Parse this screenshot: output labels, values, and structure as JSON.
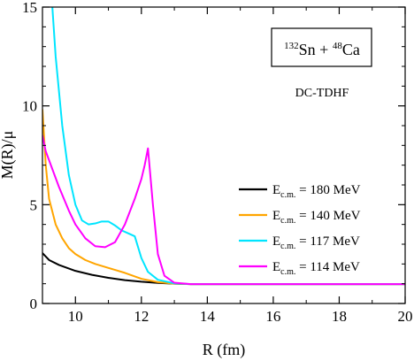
{
  "chart_data": {
    "type": "line",
    "xlabel": "R (fm)",
    "ylabel": "M(R)/μ",
    "xlim": [
      9,
      20
    ],
    "ylim": [
      0,
      15
    ],
    "xticks": [
      10,
      12,
      14,
      16,
      18,
      20
    ],
    "yticks": [
      0,
      5,
      10,
      15
    ],
    "grid": false,
    "legend_position": "right",
    "annotations": {
      "reaction": {
        "sup1": "132",
        "el1": "Sn + ",
        "sup2": "48",
        "el2": "Ca"
      },
      "method": "DC-TDHF"
    },
    "series": [
      {
        "name": "E_c.m. = 180 MeV",
        "legend": {
          "main": "E",
          "sub": "c.m.",
          "rest": " = 180 MeV"
        },
        "color": "#000000",
        "x": [
          9.0,
          9.2,
          9.5,
          10.0,
          10.5,
          11.0,
          11.5,
          12.0,
          12.5,
          13.0,
          13.5,
          14.0,
          16.0,
          18.0,
          20.0
        ],
        "y": [
          2.55,
          2.2,
          1.95,
          1.65,
          1.45,
          1.3,
          1.18,
          1.1,
          1.04,
          1.0,
          0.98,
          0.98,
          0.98,
          0.98,
          0.98
        ]
      },
      {
        "name": "E_c.m. = 140 MeV",
        "legend": {
          "main": "E",
          "sub": "c.m.",
          "rest": " = 140 MeV"
        },
        "color": "#ffa500",
        "x": [
          9.0,
          9.1,
          9.2,
          9.4,
          9.6,
          9.8,
          10.0,
          10.3,
          10.6,
          11.0,
          11.5,
          12.0,
          12.5,
          13.0,
          13.5,
          14.0,
          16.0,
          18.0,
          20.0
        ],
        "y": [
          9.8,
          7.0,
          5.3,
          4.0,
          3.3,
          2.8,
          2.5,
          2.2,
          2.0,
          1.8,
          1.55,
          1.25,
          1.08,
          1.0,
          0.98,
          0.98,
          0.98,
          0.98,
          0.98
        ]
      },
      {
        "name": "E_c.m. = 117 MeV",
        "legend": {
          "main": "E",
          "sub": "c.m.",
          "rest": " = 117 MeV"
        },
        "color": "#00e5ff",
        "x": [
          9.3,
          9.4,
          9.6,
          9.8,
          10.0,
          10.2,
          10.4,
          10.6,
          10.8,
          11.0,
          11.2,
          11.4,
          11.6,
          11.8,
          12.0,
          12.2,
          12.5,
          13.0,
          13.5,
          14.0,
          16.0,
          18.0,
          20.0
        ],
        "y": [
          15.0,
          12.5,
          9.0,
          6.5,
          5.0,
          4.2,
          4.0,
          4.05,
          4.15,
          4.15,
          3.95,
          3.7,
          3.55,
          3.4,
          2.3,
          1.6,
          1.2,
          1.02,
          0.98,
          0.98,
          0.98,
          0.98,
          0.98
        ]
      },
      {
        "name": "E_c.m. = 114 MeV",
        "legend": {
          "main": "E",
          "sub": "c.m.",
          "rest": " = 114 MeV"
        },
        "color": "#ff00ff",
        "x": [
          9.0,
          9.1,
          9.3,
          9.5,
          9.8,
          10.0,
          10.3,
          10.6,
          10.9,
          11.2,
          11.5,
          11.8,
          12.0,
          12.1,
          12.2,
          12.35,
          12.5,
          12.7,
          13.0,
          13.5,
          14.0,
          16.0,
          18.0,
          20.0
        ],
        "y": [
          8.5,
          7.7,
          6.8,
          5.9,
          4.7,
          4.0,
          3.3,
          2.9,
          2.85,
          3.1,
          4.0,
          5.3,
          6.3,
          7.0,
          7.85,
          5.0,
          2.5,
          1.4,
          1.05,
          0.98,
          0.98,
          0.98,
          0.98,
          0.98
        ]
      }
    ]
  }
}
